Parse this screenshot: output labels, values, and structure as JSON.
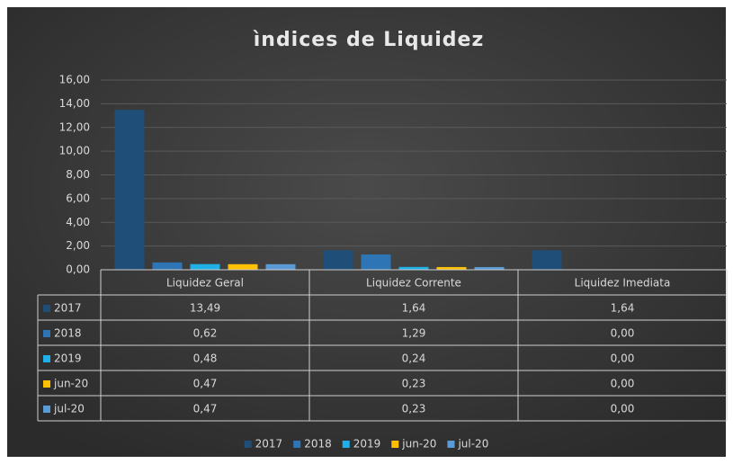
{
  "chart_data": {
    "type": "bar",
    "title": "ìndices de Liquidez",
    "categories": [
      "Liquidez Geral",
      "Liquidez Corrente",
      "Liquidez Imediata"
    ],
    "series": [
      {
        "name": "2017",
        "color": "#1f4e79",
        "values": [
          13.49,
          1.64,
          1.64
        ],
        "value_labels": [
          "13,49",
          "1,64",
          "1,64"
        ]
      },
      {
        "name": "2018",
        "color": "#2e75b6",
        "values": [
          0.62,
          1.29,
          0.0
        ],
        "value_labels": [
          "0,62",
          "1,29",
          "0,00"
        ]
      },
      {
        "name": "2019",
        "color": "#1fb0e8",
        "values": [
          0.48,
          0.24,
          0.0
        ],
        "value_labels": [
          "0,48",
          "0,24",
          "0,00"
        ]
      },
      {
        "name": "jun-20",
        "color": "#ffc000",
        "values": [
          0.47,
          0.23,
          0.0
        ],
        "value_labels": [
          "0,47",
          "0,23",
          "0,00"
        ]
      },
      {
        "name": "jul-20",
        "color": "#5b9bd5",
        "values": [
          0.47,
          0.23,
          0.0
        ],
        "value_labels": [
          "0,47",
          "0,23",
          "0,00"
        ]
      }
    ],
    "ylim": [
      0,
      16
    ],
    "yticks": [
      {
        "value": 0,
        "label": "0,00"
      },
      {
        "value": 2,
        "label": "2,00"
      },
      {
        "value": 4,
        "label": "4,00"
      },
      {
        "value": 6,
        "label": "6,00"
      },
      {
        "value": 8,
        "label": "8,00"
      },
      {
        "value": 10,
        "label": "10,00"
      },
      {
        "value": 12,
        "label": "12,00"
      },
      {
        "value": 14,
        "label": "14,00"
      },
      {
        "value": 16,
        "label": "16,00"
      }
    ],
    "grid": true
  }
}
